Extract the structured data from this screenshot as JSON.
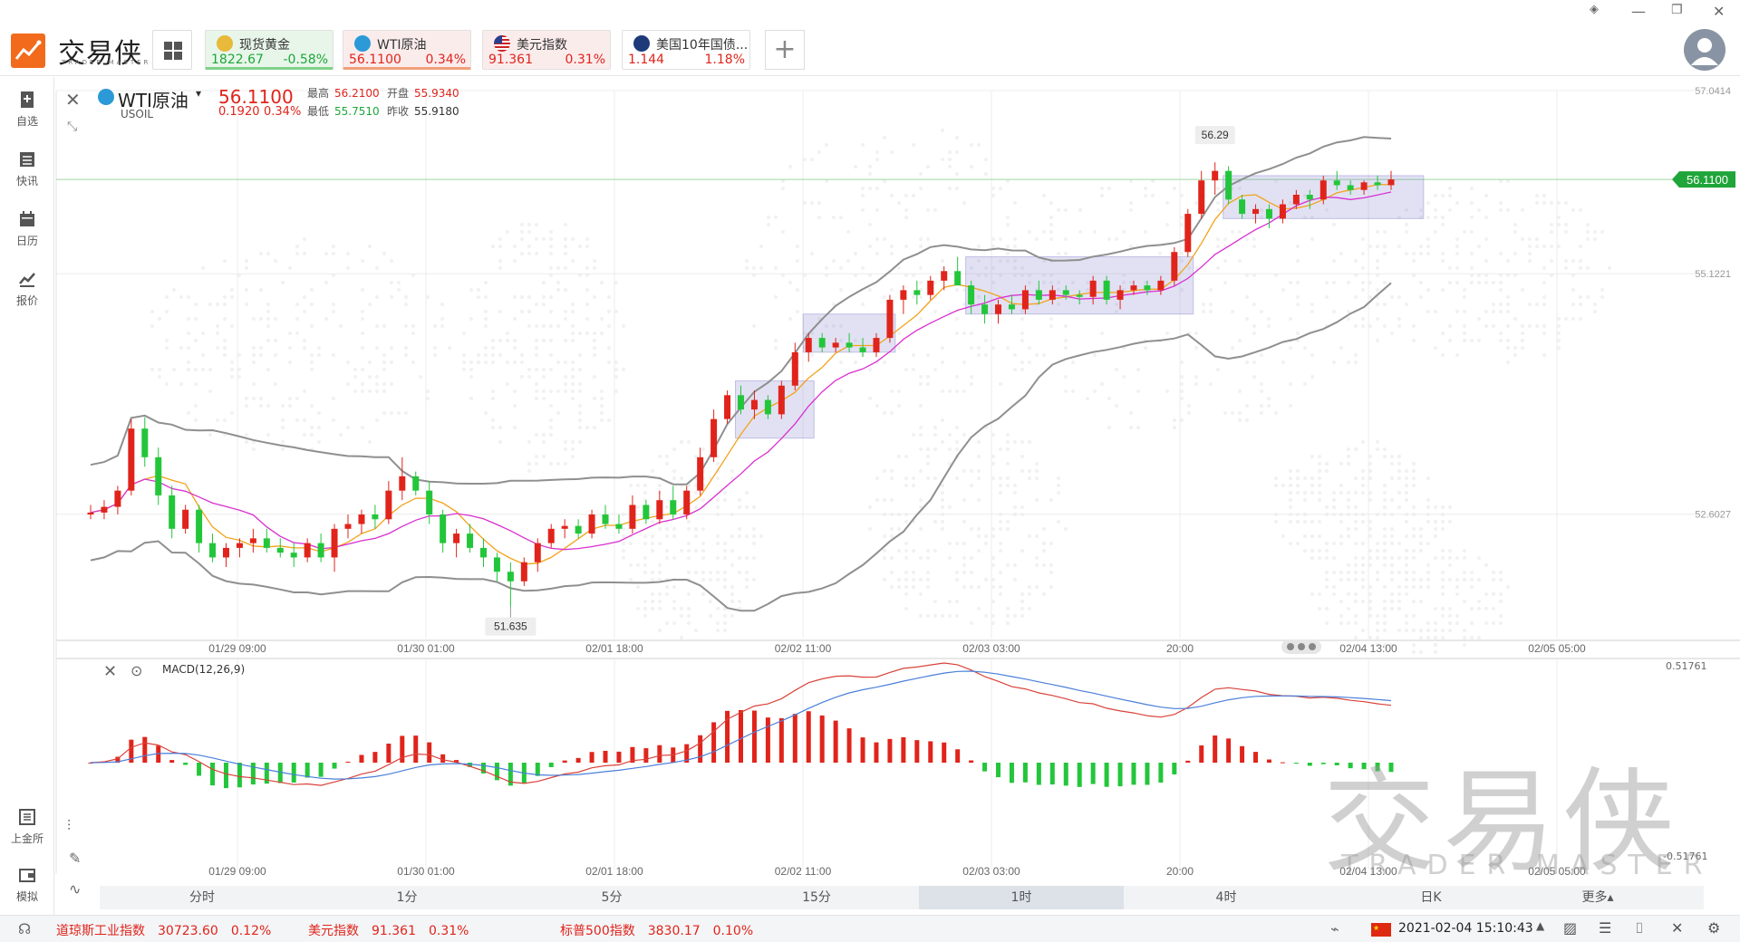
{
  "app": {
    "logo_text": "交易侠",
    "logo_sub": "TRADER MASTER",
    "brand_color": "#f26a1b"
  },
  "quotes": [
    {
      "name": "现货黄金",
      "price": "1822.67",
      "change": "-0.58%",
      "icon": "gold-coin-icon",
      "dir": "down"
    },
    {
      "name": "WTI原油",
      "price": "56.1100",
      "change": "0.34%",
      "icon": "oil-icon",
      "dir": "up"
    },
    {
      "name": "美元指数",
      "price": "91.361",
      "change": "0.31%",
      "icon": "us-flag-icon",
      "dir": "up"
    },
    {
      "name": "美国10年国债...",
      "price": "1.144",
      "change": "1.18%",
      "icon": "bond-icon",
      "dir": "up"
    }
  ],
  "sidebar": {
    "items": [
      {
        "label": "自选",
        "icon": "bookmark-icon"
      },
      {
        "label": "快讯",
        "icon": "news-icon"
      },
      {
        "label": "日历",
        "icon": "calendar-icon"
      },
      {
        "label": "报价",
        "icon": "chart-line-icon"
      }
    ],
    "bottom": [
      {
        "label": "上金所",
        "icon": "exchange-icon"
      },
      {
        "label": "模拟",
        "icon": "wallet-icon"
      }
    ]
  },
  "instrument": {
    "name": "WTI原油",
    "code": "USOIL",
    "price": "56.1100",
    "change": "0.1920",
    "change_pct": "0.34%",
    "high_label": "最高",
    "high": "56.2100",
    "open_label": "开盘",
    "open": "55.9340",
    "low_label": "最低",
    "low": "55.7510",
    "prev_label": "昨收",
    "prev": "55.9180"
  },
  "macd": {
    "label": "MACD(12,26,9)",
    "top_value": "0.51761",
    "bottom_value": "-0.51761"
  },
  "periods": [
    "分时",
    "1分",
    "5分",
    "15分",
    "1时",
    "4时",
    "日K",
    "更多▴"
  ],
  "active_period": "1时",
  "statusbar": {
    "items": [
      {
        "name": "道琼斯工业指数",
        "value": "30723.60",
        "change": "0.12%"
      },
      {
        "name": "美元指数",
        "value": "91.361",
        "change": "0.31%"
      },
      {
        "name": "标普500指数",
        "value": "3830.17",
        "change": "0.10%"
      }
    ],
    "datetime": "2021-02-04 15:10:43",
    "flag_icon": "china-flag-icon"
  },
  "watermark": {
    "text": "交易侠",
    "sub": "TRADER MASTER"
  },
  "chart_data": {
    "type": "candlestick",
    "y_ticks": [
      "57.0414",
      "55.1221",
      "52.6027"
    ],
    "current_price_tag": "56.1100",
    "high_marker": "56.29",
    "low_marker": "51.635",
    "x_ticks": [
      "01/29 09:00",
      "01/30 01:00",
      "02/01 18:00",
      "02/02 11:00",
      "02/03 03:00",
      "20:00",
      "02/04 13:00",
      "02/05 05:00"
    ],
    "macd_x_ticks": [
      "01/29 09:00",
      "01/30 01:00",
      "02/01 18:00",
      "02/02 11:00",
      "02/03 03:00",
      "20:00",
      "02/04 13:00",
      "02/05 05:00"
    ],
    "ylim": [
      51.3,
      57.0414
    ],
    "colors": {
      "up": "#e0241b",
      "down": "#23c63a",
      "ma_fast": "#f2a31b",
      "ma_slow": "#d92fd0",
      "boll": "#8f8f8f",
      "price_line": "#23a334"
    },
    "candles": [
      [
        52.6,
        52.7,
        52.55,
        52.62
      ],
      [
        52.62,
        52.75,
        52.55,
        52.68
      ],
      [
        52.68,
        52.9,
        52.6,
        52.85
      ],
      [
        52.85,
        53.6,
        52.8,
        53.5
      ],
      [
        53.5,
        53.62,
        53.1,
        53.2
      ],
      [
        53.2,
        53.3,
        52.7,
        52.8
      ],
      [
        52.8,
        52.9,
        52.35,
        52.45
      ],
      [
        52.45,
        52.7,
        52.4,
        52.65
      ],
      [
        52.65,
        52.7,
        52.2,
        52.3
      ],
      [
        52.3,
        52.4,
        52.1,
        52.15
      ],
      [
        52.15,
        52.3,
        52.05,
        52.25
      ],
      [
        52.25,
        52.35,
        52.15,
        52.3
      ],
      [
        52.3,
        52.45,
        52.2,
        52.35
      ],
      [
        52.35,
        52.45,
        52.2,
        52.25
      ],
      [
        52.25,
        52.35,
        52.15,
        52.2
      ],
      [
        52.2,
        52.3,
        52.05,
        52.15
      ],
      [
        52.15,
        52.35,
        52.1,
        52.3
      ],
      [
        52.3,
        52.4,
        52.1,
        52.15
      ],
      [
        52.15,
        52.5,
        52.0,
        52.45
      ],
      [
        52.45,
        52.6,
        52.35,
        52.5
      ],
      [
        52.5,
        52.65,
        52.4,
        52.6
      ],
      [
        52.6,
        52.7,
        52.45,
        52.55
      ],
      [
        52.55,
        52.95,
        52.5,
        52.85
      ],
      [
        52.85,
        53.2,
        52.75,
        53.0
      ],
      [
        53.0,
        53.05,
        52.8,
        52.85
      ],
      [
        52.85,
        52.95,
        52.5,
        52.6
      ],
      [
        52.6,
        52.65,
        52.2,
        52.3
      ],
      [
        52.3,
        52.45,
        52.15,
        52.4
      ],
      [
        52.4,
        52.5,
        52.2,
        52.25
      ],
      [
        52.25,
        52.35,
        52.05,
        52.15
      ],
      [
        52.15,
        52.2,
        51.9,
        52.0
      ],
      [
        52.0,
        52.1,
        51.63,
        51.9
      ],
      [
        51.9,
        52.15,
        51.85,
        52.1
      ],
      [
        52.1,
        52.35,
        52.0,
        52.3
      ],
      [
        52.3,
        52.5,
        52.25,
        52.45
      ],
      [
        52.45,
        52.55,
        52.35,
        52.48
      ],
      [
        52.48,
        52.55,
        52.35,
        52.4
      ],
      [
        52.4,
        52.65,
        52.35,
        52.6
      ],
      [
        52.6,
        52.7,
        52.45,
        52.5
      ],
      [
        52.5,
        52.6,
        52.4,
        52.45
      ],
      [
        52.45,
        52.8,
        52.4,
        52.7
      ],
      [
        52.7,
        52.75,
        52.5,
        52.55
      ],
      [
        52.55,
        52.85,
        52.5,
        52.75
      ],
      [
        52.75,
        52.9,
        52.55,
        52.6
      ],
      [
        52.6,
        52.9,
        52.55,
        52.85
      ],
      [
        52.85,
        53.3,
        52.8,
        53.2
      ],
      [
        53.2,
        53.7,
        53.15,
        53.6
      ],
      [
        53.6,
        53.9,
        53.55,
        53.85
      ],
      [
        53.85,
        53.95,
        53.65,
        53.7
      ],
      [
        53.7,
        53.9,
        53.6,
        53.8
      ],
      [
        53.8,
        53.85,
        53.6,
        53.65
      ],
      [
        53.65,
        54.0,
        53.6,
        53.95
      ],
      [
        53.95,
        54.4,
        53.9,
        54.3
      ],
      [
        54.3,
        54.5,
        54.2,
        54.45
      ],
      [
        54.45,
        54.5,
        54.3,
        54.35
      ],
      [
        54.35,
        54.45,
        54.3,
        54.4
      ],
      [
        54.4,
        54.5,
        54.3,
        54.35
      ],
      [
        54.35,
        54.45,
        54.25,
        54.3
      ],
      [
        54.3,
        54.5,
        54.25,
        54.45
      ],
      [
        54.45,
        54.9,
        54.4,
        54.85
      ],
      [
        54.85,
        55.0,
        54.7,
        54.95
      ],
      [
        54.95,
        55.05,
        54.8,
        54.9
      ],
      [
        54.9,
        55.1,
        54.85,
        55.05
      ],
      [
        55.05,
        55.2,
        54.95,
        55.15
      ],
      [
        55.15,
        55.3,
        55.0,
        55.0
      ],
      [
        55.0,
        55.05,
        54.7,
        54.8
      ],
      [
        54.8,
        54.9,
        54.6,
        54.7
      ],
      [
        54.7,
        54.85,
        54.6,
        54.8
      ],
      [
        54.8,
        54.9,
        54.7,
        54.75
      ],
      [
        54.75,
        55.0,
        54.7,
        54.95
      ],
      [
        54.95,
        55.05,
        54.8,
        54.85
      ],
      [
        54.85,
        55.0,
        54.8,
        54.95
      ],
      [
        54.95,
        55.0,
        54.85,
        54.9
      ],
      [
        54.9,
        54.95,
        54.8,
        54.88
      ],
      [
        54.88,
        55.1,
        54.8,
        55.05
      ],
      [
        55.05,
        55.1,
        54.8,
        54.85
      ],
      [
        54.85,
        55.0,
        54.75,
        54.95
      ],
      [
        54.95,
        55.05,
        54.9,
        55.0
      ],
      [
        55.0,
        55.05,
        54.9,
        54.95
      ],
      [
        54.95,
        55.1,
        54.9,
        55.05
      ],
      [
        55.05,
        55.4,
        55.0,
        55.35
      ],
      [
        55.35,
        55.8,
        55.3,
        55.75
      ],
      [
        55.75,
        56.2,
        55.7,
        56.1
      ],
      [
        56.1,
        56.29,
        55.95,
        56.2
      ],
      [
        56.2,
        56.25,
        55.85,
        55.9
      ],
      [
        55.9,
        55.95,
        55.7,
        55.75
      ],
      [
        55.75,
        55.85,
        55.65,
        55.8
      ],
      [
        55.8,
        55.85,
        55.6,
        55.7
      ],
      [
        55.7,
        55.9,
        55.65,
        55.85
      ],
      [
        55.85,
        56.0,
        55.8,
        55.95
      ],
      [
        55.95,
        56.0,
        55.8,
        55.9
      ],
      [
        55.9,
        56.15,
        55.85,
        56.1
      ],
      [
        56.1,
        56.2,
        56.0,
        56.05
      ],
      [
        56.05,
        56.1,
        55.95,
        56.0
      ],
      [
        56.0,
        56.1,
        55.95,
        56.08
      ],
      [
        56.08,
        56.15,
        56.0,
        56.05
      ],
      [
        56.05,
        56.2,
        56.0,
        56.11
      ]
    ],
    "macd_hist_note": "derived from candles"
  }
}
